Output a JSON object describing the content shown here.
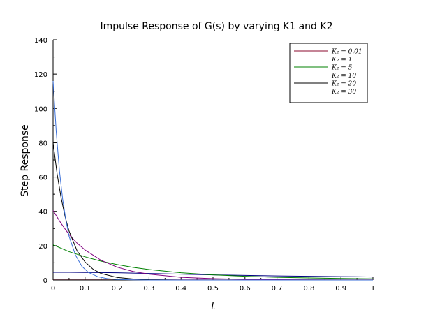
{
  "chart_data": {
    "type": "line",
    "title": "Impulse Response of G(s) by varying K1 and K2",
    "xlabel": "t",
    "ylabel": "Step Response",
    "xlim": [
      0,
      1
    ],
    "ylim": [
      0,
      140
    ],
    "xticks": [
      "0",
      "0.1",
      "0.2",
      "0.3",
      "0.4",
      "0.5",
      "0.6",
      "0.7",
      "0.8",
      "0.9",
      "1"
    ],
    "yticks": [
      "0",
      "20",
      "40",
      "60",
      "80",
      "100",
      "120",
      "140"
    ],
    "grid": false,
    "legend_position": "top-right",
    "series": [
      {
        "name": "K₂ = 0.01",
        "color": "#8b0a2e",
        "x": [
          0,
          0.05,
          0.1,
          0.2,
          0.3,
          0.4,
          0.5,
          0.6,
          0.7,
          0.8,
          0.9,
          1.0
        ],
        "y": [
          0.5,
          0.5,
          0.5,
          0.5,
          0.5,
          0.5,
          0.5,
          0.5,
          0.5,
          0.5,
          0.5,
          0.5
        ]
      },
      {
        "name": "K₂ = 1",
        "color": "#000080",
        "x": [
          0,
          0.05,
          0.1,
          0.2,
          0.3,
          0.4,
          0.5,
          0.6,
          0.7,
          0.8,
          0.9,
          1.0
        ],
        "y": [
          4.5,
          4.5,
          4.4,
          4.2,
          3.8,
          3.4,
          3.0,
          2.7,
          2.4,
          2.2,
          2.0,
          1.8
        ]
      },
      {
        "name": "K₂ = 5",
        "color": "#008000",
        "x": [
          0,
          0.05,
          0.1,
          0.15,
          0.2,
          0.25,
          0.3,
          0.4,
          0.5,
          0.6,
          0.7,
          0.8,
          0.9,
          1.0
        ],
        "y": [
          20.5,
          16.5,
          13.5,
          11.0,
          9.0,
          7.4,
          6.1,
          4.2,
          3.0,
          2.2,
          1.6,
          1.2,
          0.9,
          0.7
        ]
      },
      {
        "name": "K₂ = 10",
        "color": "#800080",
        "x": [
          0,
          0.025,
          0.05,
          0.075,
          0.1,
          0.15,
          0.2,
          0.25,
          0.3,
          0.4,
          0.5,
          0.6,
          0.7,
          0.8,
          0.9,
          1.0
        ],
        "y": [
          40.5,
          33.0,
          26.5,
          21.5,
          17.5,
          11.5,
          7.5,
          5.0,
          3.4,
          1.6,
          0.8,
          0.4,
          0.2,
          0.1,
          0.0,
          0.0
        ]
      },
      {
        "name": "K₂ = 20",
        "color": "#000000",
        "x": [
          0,
          0.0125,
          0.025,
          0.0375,
          0.05,
          0.075,
          0.1,
          0.125,
          0.15,
          0.2,
          0.25,
          0.3,
          0.4,
          0.5,
          0.7,
          1.0
        ],
        "y": [
          80.0,
          62.0,
          48.0,
          37.0,
          28.5,
          17.0,
          10.5,
          6.3,
          3.8,
          1.5,
          0.6,
          0.2,
          0.0,
          0.0,
          0.0,
          0.0
        ]
      },
      {
        "name": "K₂ = 30",
        "color": "#3a6fd8",
        "x": [
          0,
          0.01,
          0.02,
          0.03,
          0.04,
          0.05,
          0.07,
          0.09,
          0.11,
          0.14,
          0.17,
          0.2,
          0.25,
          0.3,
          0.4,
          0.5,
          0.7,
          1.0
        ],
        "y": [
          116.0,
          86.0,
          63.5,
          47.0,
          35.0,
          25.5,
          14.5,
          8.0,
          4.5,
          1.9,
          0.8,
          0.3,
          0.1,
          0.0,
          0.0,
          0.0,
          0.0,
          0.0
        ]
      }
    ]
  }
}
